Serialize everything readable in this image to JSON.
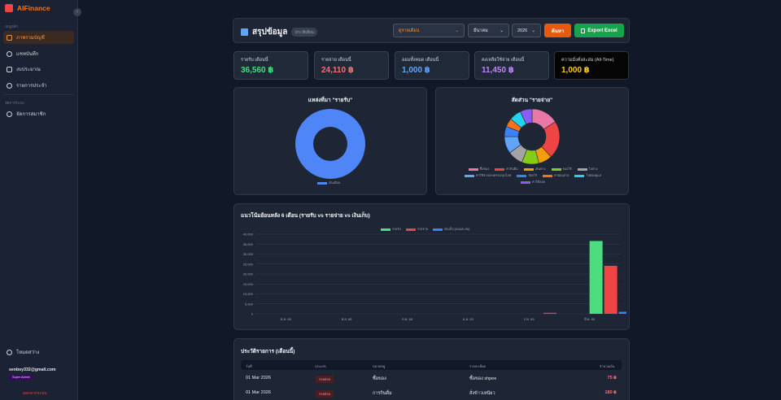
{
  "app": {
    "name": "AIFinance"
  },
  "sidebar": {
    "section1": "เมนูหลัก",
    "items": [
      {
        "label": "ภาพรวมบัญชี",
        "active": true
      },
      {
        "label": "แชทบันทึก"
      },
      {
        "label": "งบประมาณ"
      },
      {
        "label": "รายการประจำ"
      }
    ],
    "section2": "จัดการระบบ",
    "admin_items": [
      {
        "label": "จัดการสมาชิก"
      }
    ],
    "theme_label": "โหมดสว่าง",
    "user_email": "senboy332@gmail.com",
    "role": "Super Admin",
    "logout": "ออกจากระบบ"
  },
  "header": {
    "title": "สรุปข้อมูล",
    "badge": "ประวัติเดือน",
    "view_select": "ดูรายเดือน",
    "month_select": "มีนาคม",
    "year_select": "2026",
    "search_btn": "ค้นหา",
    "export_btn": "Export Excel"
  },
  "cards": [
    {
      "label": "รายรับ เดือนนี้",
      "value": "36,560 ฿",
      "color": "#4ade80"
    },
    {
      "label": "รายจ่าย เดือนนี้",
      "value": "24,110 ฿",
      "color": "#f87171"
    },
    {
      "label": "ออมทั้งหมด เดือนนี้",
      "value": "1,000 ฿",
      "color": "#60a5fa"
    },
    {
      "label": "คงเหลือใช้จ่าย เดือนนี้",
      "value": "11,450 ฿",
      "color": "#c084fc"
    },
    {
      "label": "ความมั่งคั่งสะสม (All-Time)",
      "value": "1,000 ฿",
      "color": "#facc15"
    }
  ],
  "income_chart": {
    "title": "แหล่งที่มา \"รายรับ\"",
    "chart_data": {
      "type": "pie",
      "labels": [
        "เงินเดือน"
      ],
      "values": [
        36560
      ],
      "colors": [
        "#4f86f7"
      ]
    }
  },
  "expense_chart": {
    "title": "สัดส่วน \"รายจ่าย\"",
    "chart_data": {
      "type": "pie",
      "labels": [
        "ซื้อของ",
        "ค่ากินดื่ม",
        "เดินทาง",
        "ของใช้",
        "ไปต่าง",
        "ค่าใช้จ่ายเกษตรรถ/อุปโภค",
        "ช่องไร้",
        "ค่าผ่อนจ่าย",
        "ไปต่อยดูแล",
        "ค่าใช้สอย"
      ],
      "values": [
        16,
        22,
        8,
        10,
        9,
        10,
        6,
        5,
        7,
        7
      ],
      "colors": [
        "#e879a6",
        "#ef4444",
        "#f59e0b",
        "#84cc16",
        "#a3a3a3",
        "#60a5fa",
        "#3b82f6",
        "#f97316",
        "#22d3ee",
        "#8b5cf6"
      ]
    }
  },
  "trend_chart": {
    "title": "แนวโน้มย้อนหลัง 6 เดือน (รายรับ vs รายจ่าย vs เงินเก็บ)",
    "chart_data": {
      "type": "bar",
      "categories": [
        "ต.ค. 68",
        "พ.ย. 68",
        "ธ.ค. 68",
        "ม.ค. 69",
        "ก.พ. 69",
        "มี.ค. 69"
      ],
      "series": [
        {
          "name": "รายรับ",
          "color": "#4ade80",
          "values": [
            0,
            0,
            0,
            0,
            0,
            36560
          ]
        },
        {
          "name": "รายจ่าย",
          "color": "#ef4444",
          "values": [
            0,
            0,
            0,
            0,
            500,
            24110
          ]
        },
        {
          "name": "เงินเก็บ (ออมสะสม)",
          "color": "#3b82f6",
          "values": [
            0,
            0,
            0,
            0,
            0,
            1000
          ]
        }
      ],
      "yticks": [
        "40,000",
        "35,000",
        "30,000",
        "25,000",
        "20,000",
        "15,000",
        "10,000",
        "5,000",
        "0"
      ],
      "ylim": [
        0,
        40000
      ]
    }
  },
  "history": {
    "title": "ประวัติรายการ (เดือนนี้)",
    "columns": [
      "วันที่",
      "ประเภท",
      "หมวดหมู่",
      "รายละเอียด",
      "จำนวนเงิน"
    ],
    "rows": [
      {
        "date": "01 Mar 2026",
        "type": "รายจ่าย",
        "category": "ซื้อของ",
        "detail": "ซื้อของ shpee",
        "amount": "75 ฿"
      },
      {
        "date": "01 Mar 2026",
        "type": "รายจ่าย",
        "category": "การกินดื่ม",
        "detail": "สั่งข้าวเหนียว",
        "amount": "180 ฿"
      }
    ]
  }
}
